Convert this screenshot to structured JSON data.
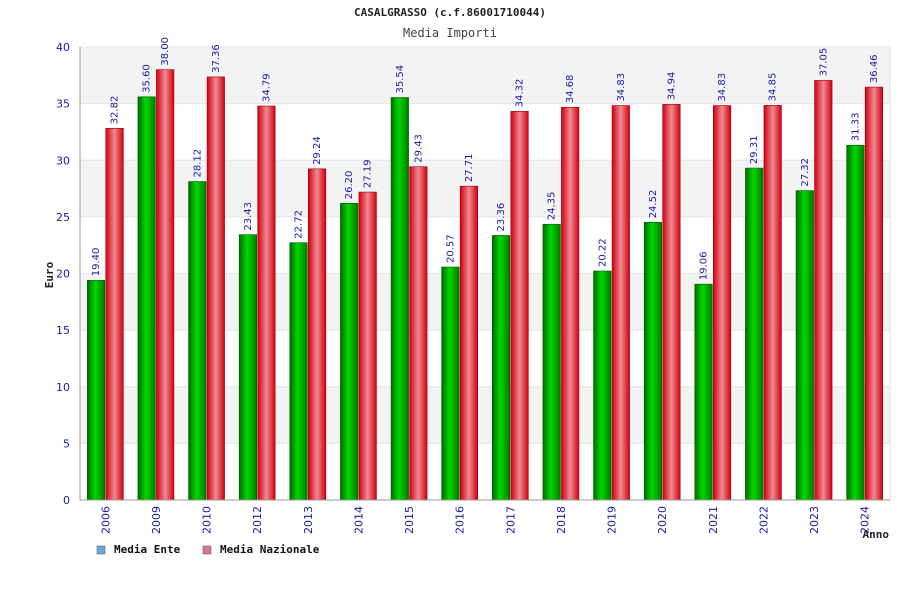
{
  "chart_data": {
    "type": "bar",
    "title": "CASALGRASSO (c.f.86001710044)",
    "subtitle": "Media Importi",
    "xlabel": "Anno",
    "ylabel": "Euro",
    "ylim": [
      0,
      40
    ],
    "yticks": [
      0,
      5,
      10,
      15,
      20,
      25,
      30,
      35,
      40
    ],
    "grid": true,
    "legend_position": "bottom-left",
    "categories": [
      "2006",
      "2009",
      "2010",
      "2012",
      "2013",
      "2014",
      "2015",
      "2016",
      "2017",
      "2018",
      "2019",
      "2020",
      "2021",
      "2022",
      "2023",
      "2024"
    ],
    "series": [
      {
        "name": "Media Ente",
        "legend_color": "#6fa8dc",
        "color": "#00b400",
        "values": [
          19.4,
          35.6,
          28.12,
          23.43,
          22.72,
          26.2,
          35.54,
          20.57,
          23.36,
          24.35,
          20.22,
          24.52,
          19.06,
          29.31,
          27.32,
          31.33
        ],
        "labels": [
          "19.40",
          "35.60",
          "28.12",
          "23.43",
          "22.72",
          "26.20",
          "35.54",
          "20.57",
          "23.36",
          "24.35",
          "20.22",
          "24.52",
          "19.06",
          "29.31",
          "27.32",
          "31.33"
        ]
      },
      {
        "name": "Media Nazionale",
        "legend_color": "#d07a9a",
        "color": "#e8182a",
        "values": [
          32.82,
          38.0,
          37.36,
          34.79,
          29.24,
          27.19,
          29.43,
          27.71,
          34.32,
          34.68,
          34.83,
          34.94,
          34.83,
          34.85,
          37.05,
          36.46
        ],
        "labels": [
          "32.82",
          "38.00",
          "37.36",
          "34.79",
          "29.24",
          "27.19",
          "29.43",
          "27.71",
          "34.32",
          "34.68",
          "34.83",
          "34.94",
          "34.83",
          "34.85",
          "37.05",
          "36.46"
        ]
      }
    ]
  }
}
